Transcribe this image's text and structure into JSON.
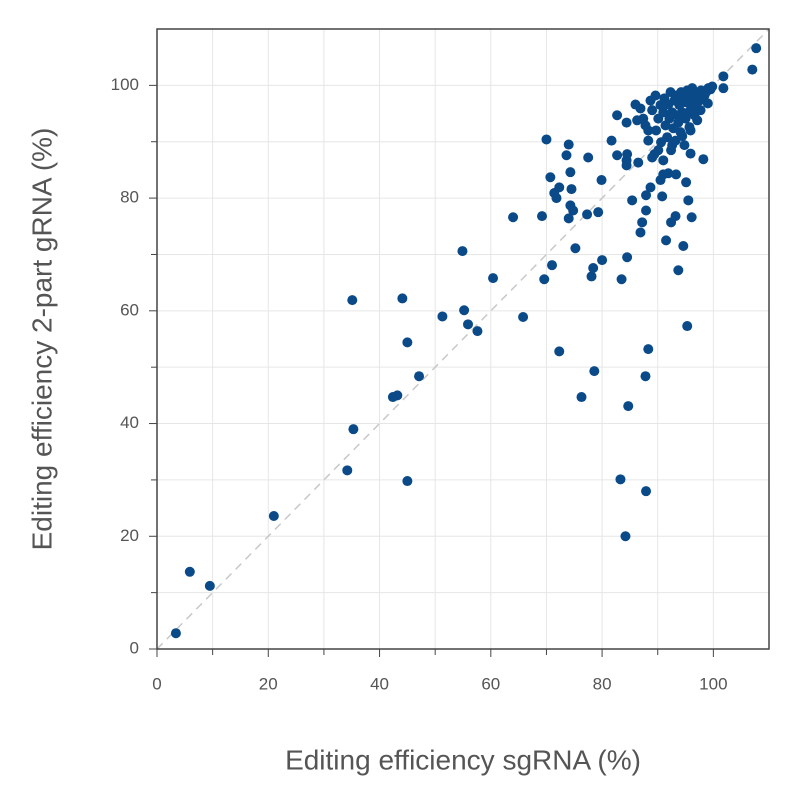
{
  "chart_data": {
    "type": "scatter",
    "x_label": "Editing efficiency sgRNA (%)",
    "y_label": "Editing efficiency 2-part gRNA (%)",
    "color": "#0b4a88",
    "xlim": [
      0,
      110
    ],
    "ylim": [
      0,
      110
    ],
    "xticks": [
      0,
      20,
      40,
      60,
      80,
      100
    ],
    "yticks": [
      0,
      20,
      40,
      60,
      80,
      100
    ],
    "minor_ticks": [
      10,
      30,
      50,
      70,
      90
    ],
    "grid": true,
    "diagonal": true,
    "x": [
      3.4,
      5.9,
      9.5,
      21,
      34.2,
      35.3,
      35.1,
      44.1,
      42.4,
      43.2,
      45,
      45,
      47.1,
      51.3,
      54.9,
      55.2,
      55.9,
      57.6,
      60.4,
      65.8,
      64,
      69.2,
      69.6,
      70,
      70.7,
      71,
      71.4,
      71.8,
      72.3,
      72.3,
      73.6,
      74,
      74.3,
      74.3,
      74,
      74.8,
      74.5,
      75.2,
      76.3,
      77.3,
      77.5,
      78.1,
      78.4,
      78.6,
      79.3,
      79.9,
      80,
      81.7,
      82.7,
      82.7,
      83.5,
      83.3,
      84.4,
      84.4,
      84.2,
      84.7,
      84.5,
      84.5,
      84.4,
      85.4,
      86,
      86.3,
      86.5,
      86.9,
      87.2,
      87.8,
      87.9,
      88.3,
      87.9,
      87.9,
      88.7,
      89,
      89.4,
      90.5,
      91,
      91.9,
      91.5,
      90.8,
      92.4,
      93.2,
      93.7,
      93.3,
      94.6,
      95.1,
      95.3,
      95.5,
      96.1,
      95.9,
      98.2,
      99,
      99.5,
      101.8,
      101.8,
      107,
      107.7,
      86.9,
      87.8,
      88.3,
      88.7,
      89.0,
      89.6,
      89.7,
      90.1,
      90.5,
      90.6,
      91.0,
      91.2,
      91.4,
      91.7,
      91.9,
      92.1,
      92.3,
      92.4,
      92.6,
      92.8,
      93.0,
      93.2,
      93.3,
      93.5,
      93.7,
      93.9,
      94.1,
      94.2,
      94.4,
      94.6,
      94.8,
      95.0,
      95.1,
      95.3,
      95.5,
      95.7,
      95.9,
      96.0,
      96.2,
      96.4,
      96.6,
      96.8,
      96.9,
      97.1,
      97.3,
      97.5,
      97.7,
      97.8,
      98.0,
      98.4,
      98.7,
      99.1,
      99.8,
      95.9,
      94.4,
      92.6,
      91.0,
      90.1,
      88.3,
      87.4
    ],
    "values": [
      2.8,
      13.7,
      11.2,
      23.6,
      31.7,
      39,
      61.9,
      62.2,
      44.7,
      45,
      54.4,
      29.8,
      48.4,
      59,
      70.6,
      60.1,
      57.6,
      56.4,
      65.8,
      58.9,
      76.6,
      76.8,
      65.6,
      90.4,
      83.7,
      68.1,
      80.9,
      80,
      52.8,
      81.9,
      87.6,
      89.5,
      84.6,
      78.7,
      76.4,
      77.8,
      81.6,
      71.1,
      44.7,
      77.1,
      87.2,
      66.1,
      67.6,
      49.3,
      77.5,
      83.2,
      69,
      90.2,
      94.7,
      87.6,
      65.6,
      30.1,
      86.7,
      85.8,
      20,
      43.1,
      69.5,
      87.8,
      93.4,
      79.6,
      96.6,
      93.8,
      86.3,
      73.9,
      75.7,
      48.4,
      28,
      53.2,
      77.8,
      80.5,
      81.9,
      87.2,
      87.8,
      83.2,
      84.2,
      84.4,
      72.5,
      80.3,
      75.7,
      76.8,
      67.2,
      84.2,
      71.5,
      82.8,
      57.3,
      79.6,
      76.6,
      87.9,
      86.9,
      96.8,
      99.3,
      99.5,
      101.6,
      102.8,
      106.6,
      95.9,
      92.9,
      90.2,
      97.3,
      95.6,
      98.2,
      92.0,
      94.1,
      96.5,
      89.9,
      95.2,
      97.7,
      92.9,
      90.8,
      96.6,
      94.1,
      98.8,
      88.5,
      95.2,
      92.4,
      97.3,
      90.2,
      98.2,
      94.7,
      93.4,
      96.5,
      91.7,
      98.8,
      95.2,
      97.7,
      89.4,
      94.1,
      97.0,
      99.1,
      95.2,
      92.6,
      98.0,
      95.9,
      99.5,
      97.3,
      94.7,
      98.8,
      96.5,
      93.8,
      98.2,
      97.3,
      95.6,
      99.1,
      97.7,
      98.2,
      98.8,
      99.5,
      99.8,
      92.0,
      91.0,
      89.4,
      86.7,
      88.5,
      92.0,
      94.1
    ]
  }
}
